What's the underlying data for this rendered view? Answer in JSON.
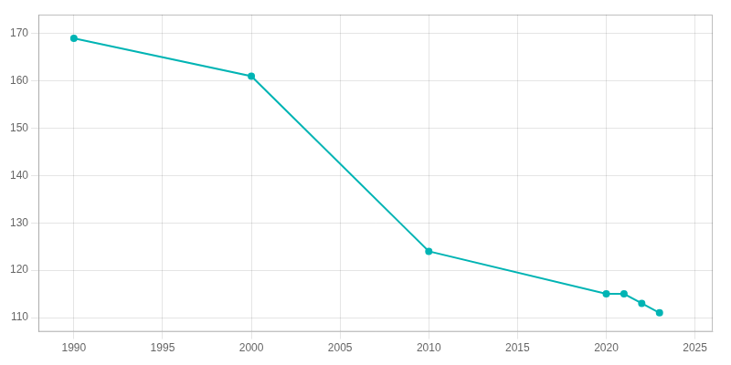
{
  "chart_data": {
    "type": "line",
    "x": [
      1990,
      2000,
      2010,
      2020,
      2021,
      2022,
      2023
    ],
    "values": [
      169,
      161,
      124,
      115,
      115,
      113,
      111
    ],
    "color": "#00b4b4",
    "marker": "circle",
    "xlim": [
      1988,
      2026
    ],
    "ylim": [
      107,
      174
    ],
    "xticks": [
      1990,
      1995,
      2000,
      2005,
      2010,
      2015,
      2020,
      2025
    ],
    "yticks": [
      110,
      120,
      130,
      140,
      150,
      160,
      170
    ],
    "grid": true
  }
}
